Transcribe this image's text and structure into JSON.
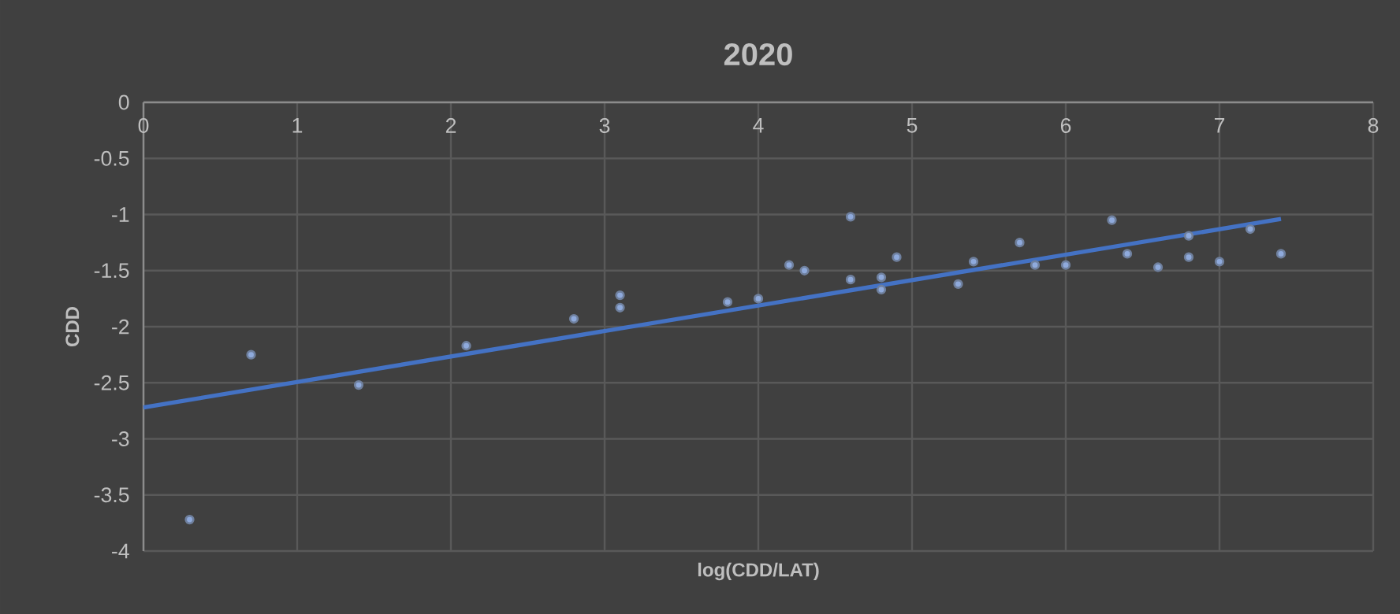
{
  "chart_data": {
    "type": "scatter",
    "title": "2020",
    "xlabel": "log(CDD/LAT)",
    "ylabel": "CDD",
    "xlim": [
      0,
      8
    ],
    "ylim": [
      -4,
      0
    ],
    "xticks": [
      0,
      1,
      2,
      3,
      4,
      5,
      6,
      7,
      8
    ],
    "yticks": [
      0,
      -0.5,
      -1,
      -1.5,
      -2,
      -2.5,
      -3,
      -3.5,
      -4
    ],
    "grid": true,
    "series": [
      {
        "color": "#8faadc",
        "marker": "circle",
        "x": [
          0.3,
          0.7,
          1.4,
          2.1,
          2.8,
          3.1,
          3.1,
          3.8,
          4.0,
          4.2,
          4.3,
          4.6,
          4.6,
          4.8,
          4.8,
          4.9,
          5.3,
          5.4,
          5.7,
          5.8,
          6.0,
          6.3,
          6.4,
          6.6,
          6.8,
          6.8,
          7.0,
          7.2,
          7.4
        ],
        "values": [
          -3.72,
          -2.25,
          -2.52,
          -2.17,
          -1.93,
          -1.72,
          -1.83,
          -1.78,
          -1.75,
          -1.45,
          -1.5,
          -1.02,
          -1.58,
          -1.56,
          -1.67,
          -1.38,
          -1.62,
          -1.42,
          -1.25,
          -1.45,
          -1.45,
          -1.05,
          -1.35,
          -1.47,
          -1.19,
          -1.38,
          -1.42,
          -1.13,
          -1.35
        ]
      },
      {
        "type": "line",
        "marker": "none",
        "color": "#4472c4",
        "x": [
          0,
          7.4
        ],
        "values": [
          -2.72,
          -1.04
        ]
      }
    ]
  }
}
